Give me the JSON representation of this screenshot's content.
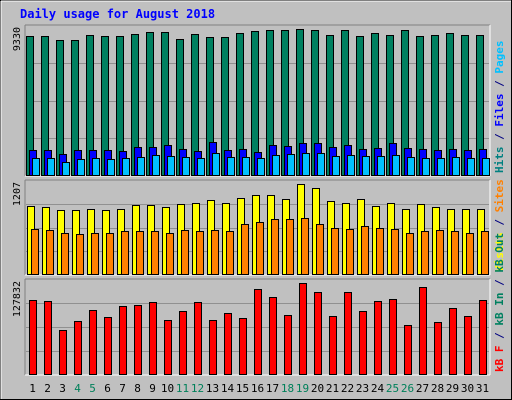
{
  "chart_data": {
    "type": "bar",
    "title": "Daily usage for August 2018",
    "categories": [
      "1",
      "2",
      "3",
      "4",
      "5",
      "6",
      "7",
      "8",
      "9",
      "10",
      "11",
      "12",
      "13",
      "14",
      "15",
      "16",
      "17",
      "18",
      "19",
      "20",
      "21",
      "22",
      "23",
      "24",
      "25",
      "26",
      "27",
      "28",
      "29",
      "30",
      "31"
    ],
    "weekend_days": [
      "4",
      "5",
      "11",
      "12",
      "18",
      "19",
      "25",
      "26"
    ],
    "panels": [
      {
        "name": "hits",
        "max_label": "9330",
        "ylim": [
          0,
          9330
        ],
        "right_labels": [
          {
            "text": "Hits",
            "color": "#008080"
          },
          {
            "text": " / ",
            "color": "#000080"
          },
          {
            "text": "Files",
            "color": "#0000ff"
          },
          {
            "text": " / ",
            "color": "#000080"
          },
          {
            "text": "Pages",
            "color": "#00c0ff"
          }
        ],
        "series": [
          {
            "name": "Hits",
            "color": "#008060",
            "values": [
              8880,
              8860,
              8660,
              8650,
              8920,
              8880,
              8900,
              9000,
              9120,
              9110,
              8670,
              9020,
              8840,
              8830,
              9100,
              9200,
              9240,
              9240,
              9330,
              9240,
              8950,
              9280,
              8900,
              9050,
              8980,
              9250,
              8890,
              8920,
              9080,
              8970,
              8930
            ]
          },
          {
            "name": "Files",
            "color": "#0000ff",
            "values": [
              1670,
              1650,
              1400,
              1650,
              1670,
              1650,
              1560,
              1810,
              1860,
              1980,
              1730,
              1590,
              2150,
              1650,
              1740,
              1520,
              1960,
              1930,
              2070,
              2070,
              1820,
              1960,
              1720,
              1780,
              2090,
              1760,
              1740,
              1680,
              1740,
              1660,
              1710
            ]
          },
          {
            "name": "Pages",
            "color": "#00c0ff",
            "values": [
              1130,
              1130,
              920,
              1090,
              1130,
              1090,
              1130,
              1220,
              1340,
              1300,
              1210,
              1150,
              1490,
              1190,
              1180,
              1130,
              1350,
              1370,
              1480,
              1430,
              1290,
              1360,
              1270,
              1270,
              1330,
              1230,
              1160,
              1160,
              1230,
              1150,
              1130
            ]
          }
        ]
      },
      {
        "name": "visits",
        "max_label": "1207",
        "ylim": [
          0,
          1207
        ],
        "right_labels": [
          {
            "text": "Visits",
            "color": "#ffff00"
          },
          {
            "text": " / ",
            "color": "#000080"
          },
          {
            "text": "Sites",
            "color": "#ff8000"
          }
        ],
        "series": [
          {
            "name": "Visits",
            "color": "#ffff00",
            "values": [
              910,
              900,
              860,
              860,
              870,
              860,
              880,
              930,
              930,
              900,
              940,
              960,
              1000,
              950,
              1020,
              1060,
              1060,
              1010,
              1207,
              1160,
              980,
              960,
              1010,
              920,
              960,
              880,
              940,
              900,
              870,
              870,
              870
            ]
          },
          {
            "name": "Sites",
            "color": "#ff8000",
            "values": [
              610,
              600,
              560,
              540,
              560,
              560,
              590,
              580,
              580,
              560,
              600,
              580,
              600,
              590,
              680,
              700,
              740,
              740,
              750,
              680,
              620,
              610,
              650,
              620,
              610,
              560,
              590,
              600,
              580,
              560,
              580
            ]
          }
        ]
      },
      {
        "name": "kbytes",
        "max_label": "127832",
        "ylim": [
          0,
          127832
        ],
        "right_labels": [
          {
            "text": "kB F",
            "color": "#ff0000"
          },
          {
            "text": " / ",
            "color": "#000080"
          },
          {
            "text": "kB In",
            "color": "#008060"
          },
          {
            "text": " / ",
            "color": "#000080"
          },
          {
            "text": "kB Out",
            "color": "#008060"
          }
        ],
        "series": [
          {
            "name": "kB F",
            "color": "#ff0000",
            "values": [
              104500,
              103000,
              62000,
              74500,
              90000,
              81000,
              96500,
              97500,
              102000,
              76500,
              89500,
              101500,
              76000,
              85500,
              79000,
              120000,
              108000,
              83000,
              127832,
              116000,
              82500,
              115000,
              88500,
              103500,
              105500,
              70000,
              122000,
              74000,
              93500,
              82000,
              104000
            ]
          }
        ]
      }
    ]
  }
}
